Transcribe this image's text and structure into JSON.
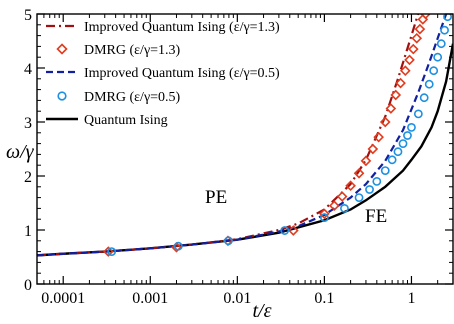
{
  "chart_data": {
    "type": "line",
    "xscale": "log",
    "xlim": [
      5e-05,
      3
    ],
    "ylim": [
      0,
      5
    ],
    "xlabel": "t/ε",
    "ylabel": "ω/γ",
    "xticks": [
      {
        "value": 0.0001,
        "label": "0.0001"
      },
      {
        "value": 0.001,
        "label": "0.001"
      },
      {
        "value": 0.01,
        "label": "0.01"
      },
      {
        "value": 0.1,
        "label": "0.1"
      },
      {
        "value": 1,
        "label": "1"
      }
    ],
    "yticks": [
      {
        "value": 0,
        "label": "0"
      },
      {
        "value": 1,
        "label": "1"
      },
      {
        "value": 2,
        "label": "2"
      },
      {
        "value": 3,
        "label": "3"
      },
      {
        "value": 4,
        "label": "4"
      },
      {
        "value": 5,
        "label": "5"
      }
    ],
    "annotations": [
      {
        "text": "PE",
        "x": 0.012,
        "y": 1.75
      },
      {
        "text": "FE",
        "x": 0.5,
        "y": 1.3
      }
    ],
    "legend_position": "top-left",
    "series": [
      {
        "name": "Improved Quantum Ising (ε/γ=1.3)",
        "kind": "line",
        "style": "dashdot",
        "color": "#a01010",
        "x": [
          5e-05,
          0.0001,
          0.0003,
          0.001,
          0.003,
          0.01,
          0.03,
          0.05,
          0.1,
          0.2,
          0.3,
          0.5,
          0.7,
          1.0,
          1.3
        ],
        "y": [
          0.53,
          0.56,
          0.6,
          0.66,
          0.73,
          0.83,
          1.0,
          1.12,
          1.38,
          1.85,
          2.3,
          3.1,
          3.8,
          4.6,
          5.2
        ]
      },
      {
        "name": "DMRG (ε/γ=1.3)",
        "kind": "markers",
        "marker": "diamond",
        "color": "#e03c1e",
        "x": [
          0.00033,
          0.002,
          0.0078,
          0.044,
          0.1,
          0.13,
          0.16,
          0.2,
          0.25,
          0.3,
          0.36,
          0.42,
          0.5,
          0.58,
          0.66,
          0.75,
          0.85,
          0.95,
          1.05,
          1.15,
          1.25,
          1.35,
          1.45
        ],
        "y": [
          0.6,
          0.68,
          0.8,
          0.99,
          1.3,
          1.45,
          1.62,
          1.82,
          2.05,
          2.28,
          2.5,
          2.72,
          3.0,
          3.25,
          3.5,
          3.72,
          3.95,
          4.15,
          4.35,
          4.55,
          4.72,
          4.9,
          5.0
        ]
      },
      {
        "name": "Improved Quantum Ising (ε/γ=0.5)",
        "kind": "line",
        "style": "dashed",
        "color": "#1020a0",
        "x": [
          5e-05,
          0.0001,
          0.0003,
          0.001,
          0.003,
          0.01,
          0.03,
          0.05,
          0.1,
          0.2,
          0.3,
          0.5,
          0.8,
          1.2,
          1.6,
          2.0,
          2.5,
          2.9
        ],
        "y": [
          0.53,
          0.56,
          0.6,
          0.66,
          0.73,
          0.82,
          0.97,
          1.07,
          1.28,
          1.6,
          1.85,
          2.28,
          2.85,
          3.55,
          4.1,
          4.55,
          5.0,
          5.3
        ]
      },
      {
        "name": "DMRG (ε/γ=0.5)",
        "kind": "markers",
        "marker": "circle",
        "color": "#1e90e0",
        "x": [
          0.00036,
          0.0021,
          0.0079,
          0.035,
          0.1,
          0.17,
          0.25,
          0.33,
          0.4,
          0.5,
          0.6,
          0.7,
          0.8,
          0.9,
          1.0,
          1.2,
          1.4,
          1.6,
          1.8,
          2.0,
          2.2,
          2.4,
          2.6
        ],
        "y": [
          0.6,
          0.7,
          0.8,
          0.99,
          1.23,
          1.4,
          1.6,
          1.75,
          1.9,
          2.1,
          2.3,
          2.45,
          2.6,
          2.75,
          2.9,
          3.15,
          3.45,
          3.7,
          3.95,
          4.2,
          4.45,
          4.7,
          4.95
        ]
      },
      {
        "name": "Quantum Ising",
        "kind": "line",
        "style": "solid",
        "color": "#000000",
        "x": [
          5e-05,
          0.0001,
          0.0003,
          0.001,
          0.003,
          0.01,
          0.03,
          0.1,
          0.2,
          0.3,
          0.5,
          0.8,
          1.0,
          1.3,
          1.7,
          2.0,
          2.5,
          3.0
        ],
        "y": [
          0.53,
          0.56,
          0.6,
          0.66,
          0.73,
          0.82,
          0.95,
          1.18,
          1.38,
          1.55,
          1.8,
          2.1,
          2.3,
          2.55,
          2.9,
          3.2,
          3.75,
          4.45
        ]
      }
    ]
  }
}
